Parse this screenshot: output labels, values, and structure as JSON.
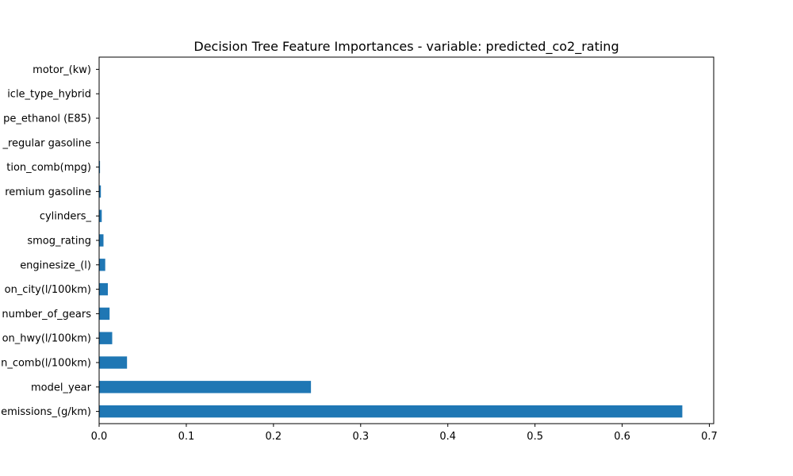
{
  "chart_data": {
    "type": "bar",
    "orientation": "horizontal",
    "title": "Decision Tree Feature Importances - variable: predicted_co2_rating",
    "xlabel": "",
    "ylabel": "",
    "xlim": [
      0,
      0.705
    ],
    "xticks": [
      0.0,
      0.1,
      0.2,
      0.3,
      0.4,
      0.5,
      0.6,
      0.7
    ],
    "xtick_labels": [
      "0.0",
      "0.1",
      "0.2",
      "0.3",
      "0.4",
      "0.5",
      "0.6",
      "0.7"
    ],
    "grid": false,
    "legend": "none",
    "bar_color": "#1f77b4",
    "categories": [
      "emissions_(g/km)",
      "model_year",
      "n_comb(l/100km)",
      "on_hwy(l/100km)",
      "number_of_gears",
      "on_city(l/100km)",
      "enginesize_(l)",
      "smog_rating",
      "cylinders_",
      "remium gasoline",
      "tion_comb(mpg)",
      "_regular gasoline",
      "pe_ethanol (E85)",
      "icle_type_hybrid",
      "motor_(kw)"
    ],
    "values": [
      0.669,
      0.243,
      0.032,
      0.015,
      0.012,
      0.01,
      0.007,
      0.005,
      0.003,
      0.002,
      0.001,
      0.0005,
      0.0003,
      0.0002,
      0.0001
    ]
  }
}
